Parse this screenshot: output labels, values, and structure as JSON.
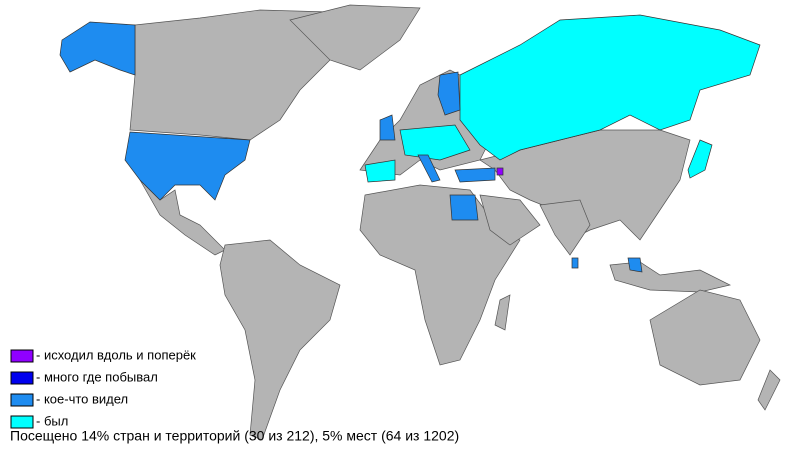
{
  "legend": [
    {
      "label": "- исходил вдоль и поперёк",
      "color": "#9000ff"
    },
    {
      "label": "- много где побывал",
      "color": "#0000ee"
    },
    {
      "label": "- кое-что видел",
      "color": "#1e8cf0"
    },
    {
      "label": "- был",
      "color": "#00ffff"
    }
  ],
  "footer": "Посещено 14% стран и территорий (30 из 212), 5% мест (64 из 1202)"
}
